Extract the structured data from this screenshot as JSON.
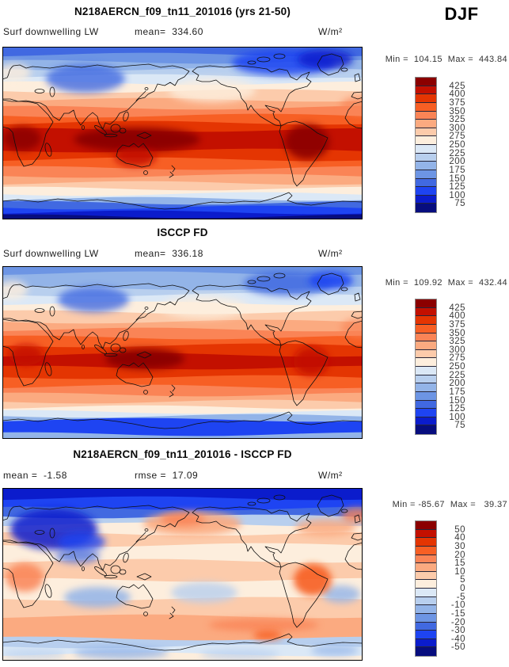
{
  "season_label": "DJF",
  "palette": [
    "#070d7e",
    "#0b1ccc",
    "#1e44f2",
    "#4169e1",
    "#6d95e4",
    "#93b4e8",
    "#b8cfee",
    "#dbe8f6",
    "#fdeedd",
    "#fccbab",
    "#fbaa80",
    "#fa8456",
    "#f75f24",
    "#e43502",
    "#c31000",
    "#8b0000"
  ],
  "panels": [
    {
      "title": "N218AERCN_f09_tn11_201016 (yrs 21-50)",
      "sub_left": "Surf downwelling LW",
      "sub_mid": "mean=  334.60",
      "units": "W/m²",
      "minmax": "Min =  104.15  Max =  443.84",
      "colorbar_labels": [
        "425",
        "400",
        "375",
        "350",
        "325",
        "300",
        "275",
        "250",
        "225",
        "200",
        "175",
        "150",
        "125",
        "100",
        "75"
      ],
      "map": {
        "bands": [
          [
            0,
            3
          ],
          [
            10,
            4
          ],
          [
            19,
            5
          ],
          [
            28,
            6
          ],
          [
            37,
            7
          ],
          [
            46,
            8
          ],
          [
            56,
            9
          ],
          [
            67,
            10
          ],
          [
            77,
            11
          ],
          [
            87,
            12
          ],
          [
            96,
            13
          ],
          [
            105,
            14
          ],
          [
            131,
            13
          ],
          [
            142,
            12
          ],
          [
            153,
            11
          ],
          [
            163,
            10
          ],
          [
            172,
            9
          ],
          [
            179,
            8
          ],
          [
            186,
            7
          ],
          [
            192,
            5
          ],
          [
            197,
            3
          ],
          [
            203,
            2
          ],
          [
            209,
            1
          ],
          [
            214,
            0
          ]
        ],
        "blobs": [
          [
            170,
            117,
            80,
            15,
            15,
            0.95
          ],
          [
            385,
            120,
            28,
            22,
            15,
            0.9
          ],
          [
            25,
            116,
            24,
            15,
            15,
            0.85
          ],
          [
            168,
            139,
            26,
            12,
            14,
            0.85
          ],
          [
            105,
            40,
            50,
            18,
            3,
            0.8
          ],
          [
            355,
            20,
            65,
            16,
            2,
            0.85
          ],
          [
            408,
            16,
            35,
            12,
            1,
            0.85
          ],
          [
            265,
            55,
            55,
            15,
            8,
            0.8
          ],
          [
            14,
            33,
            22,
            12,
            8,
            0.8
          ],
          [
            452,
            75,
            25,
            12,
            11,
            0.7
          ]
        ]
      }
    },
    {
      "title": "ISCCP FD",
      "sub_left": "Surf downwelling LW",
      "sub_mid": "mean=  336.18",
      "units": "W/m²",
      "minmax": "Min =  109.92  Max =  432.44",
      "colorbar_labels": [
        "425",
        "400",
        "375",
        "350",
        "325",
        "300",
        "275",
        "250",
        "225",
        "200",
        "175",
        "150",
        "125",
        "100",
        "75"
      ],
      "map": {
        "bands": [
          [
            0,
            4
          ],
          [
            9,
            5
          ],
          [
            28,
            6
          ],
          [
            36,
            7
          ],
          [
            47,
            8
          ],
          [
            58,
            9
          ],
          [
            70,
            10
          ],
          [
            80,
            11
          ],
          [
            90,
            12
          ],
          [
            100,
            13
          ],
          [
            112,
            14
          ],
          [
            128,
            13
          ],
          [
            140,
            12
          ],
          [
            152,
            11
          ],
          [
            162,
            10
          ],
          [
            171,
            9
          ],
          [
            178,
            8
          ],
          [
            184,
            7
          ],
          [
            189,
            5
          ],
          [
            194,
            2
          ],
          [
            212,
            5
          ]
        ],
        "blobs": [
          [
            180,
            117,
            50,
            13,
            15,
            0.95
          ],
          [
            30,
            112,
            22,
            13,
            14,
            0.8
          ],
          [
            115,
            42,
            45,
            16,
            3,
            0.8
          ],
          [
            360,
            22,
            55,
            15,
            3,
            0.85
          ],
          [
            415,
            18,
            28,
            11,
            2,
            0.9
          ],
          [
            255,
            52,
            55,
            14,
            8,
            0.8
          ],
          [
            12,
            30,
            20,
            12,
            8,
            0.8
          ],
          [
            390,
            120,
            22,
            18,
            14,
            0.85
          ],
          [
            452,
            78,
            24,
            12,
            11,
            0.7
          ]
        ]
      }
    },
    {
      "title": "N218AERCN_f09_tn11_201016 - ISCCP FD",
      "sub_left": "mean =  -1.58",
      "sub_mid": "rmse =  17.09",
      "units": "W/m²",
      "minmax": "Min = -85.67  Max =   39.37",
      "colorbar_labels": [
        "50",
        "40",
        "30",
        "20",
        "15",
        "10",
        "5",
        "0",
        "-5",
        "-10",
        "-15",
        "-20",
        "-30",
        "-40",
        "-50"
      ],
      "map": {
        "bands": [
          [
            0,
            1
          ],
          [
            13,
            2
          ],
          [
            26,
            3
          ],
          [
            36,
            6
          ],
          [
            46,
            8
          ],
          [
            58,
            9
          ],
          [
            72,
            8
          ],
          [
            92,
            9
          ],
          [
            116,
            8
          ],
          [
            140,
            9
          ],
          [
            162,
            10
          ],
          [
            190,
            6
          ],
          [
            200,
            7
          ],
          [
            210,
            8
          ]
        ],
        "blobs": [
          [
            240,
            45,
            62,
            15,
            10,
            0.9
          ],
          [
            228,
            40,
            28,
            8,
            11,
            0.9
          ],
          [
            65,
            52,
            55,
            26,
            1,
            0.85
          ],
          [
            100,
            68,
            30,
            12,
            2,
            0.8
          ],
          [
            408,
            50,
            38,
            11,
            10,
            0.85
          ],
          [
            448,
            35,
            20,
            10,
            11,
            0.8
          ],
          [
            95,
            86,
            28,
            9,
            3,
            0.7
          ],
          [
            28,
            113,
            24,
            18,
            11,
            0.85
          ],
          [
            120,
            138,
            42,
            13,
            5,
            0.85
          ],
          [
            255,
            132,
            42,
            13,
            6,
            0.8
          ],
          [
            428,
            134,
            24,
            11,
            5,
            0.8
          ],
          [
            392,
            116,
            24,
            20,
            12,
            0.9
          ],
          [
            330,
            173,
            70,
            8,
            11,
            0.8
          ],
          [
            335,
            186,
            18,
            6,
            12,
            0.85
          ],
          [
            150,
            208,
            60,
            8,
            5,
            0.8
          ],
          [
            300,
            210,
            50,
            7,
            6,
            0.7
          ],
          [
            420,
            205,
            30,
            7,
            5,
            0.7
          ],
          [
            40,
            210,
            40,
            7,
            6,
            0.6
          ]
        ]
      }
    }
  ],
  "chart_data": [
    {
      "type": "heatmap",
      "subtype": "global-contour-map",
      "title": "N218AERCN_f09_tn11_201016 (yrs 21-50)",
      "variable": "Surf downwelling LW",
      "season": "DJF",
      "units": "W/m²",
      "mean": 334.6,
      "min": 104.15,
      "max": 443.84,
      "contour_levels": [
        75,
        100,
        125,
        150,
        175,
        200,
        225,
        250,
        275,
        300,
        325,
        350,
        375,
        400,
        425
      ],
      "legend_position": "right",
      "projection": "equirectangular, 0-360E, 90N top"
    },
    {
      "type": "heatmap",
      "subtype": "global-contour-map",
      "title": "ISCCP FD",
      "variable": "Surf downwelling LW",
      "season": "DJF",
      "units": "W/m²",
      "mean": 336.18,
      "min": 109.92,
      "max": 432.44,
      "contour_levels": [
        75,
        100,
        125,
        150,
        175,
        200,
        225,
        250,
        275,
        300,
        325,
        350,
        375,
        400,
        425
      ],
      "legend_position": "right",
      "projection": "equirectangular, 0-360E, 90N top"
    },
    {
      "type": "heatmap",
      "subtype": "global-difference-map",
      "title": "N218AERCN_f09_tn11_201016 - ISCCP FD",
      "season": "DJF",
      "units": "W/m²",
      "mean": -1.58,
      "rmse": 17.09,
      "min": -85.67,
      "max": 39.37,
      "contour_levels": [
        -50,
        -40,
        -30,
        -20,
        -15,
        -10,
        -5,
        0,
        5,
        10,
        15,
        20,
        30,
        40,
        50
      ],
      "legend_position": "right",
      "projection": "equirectangular, 0-360E, 90N top"
    }
  ]
}
